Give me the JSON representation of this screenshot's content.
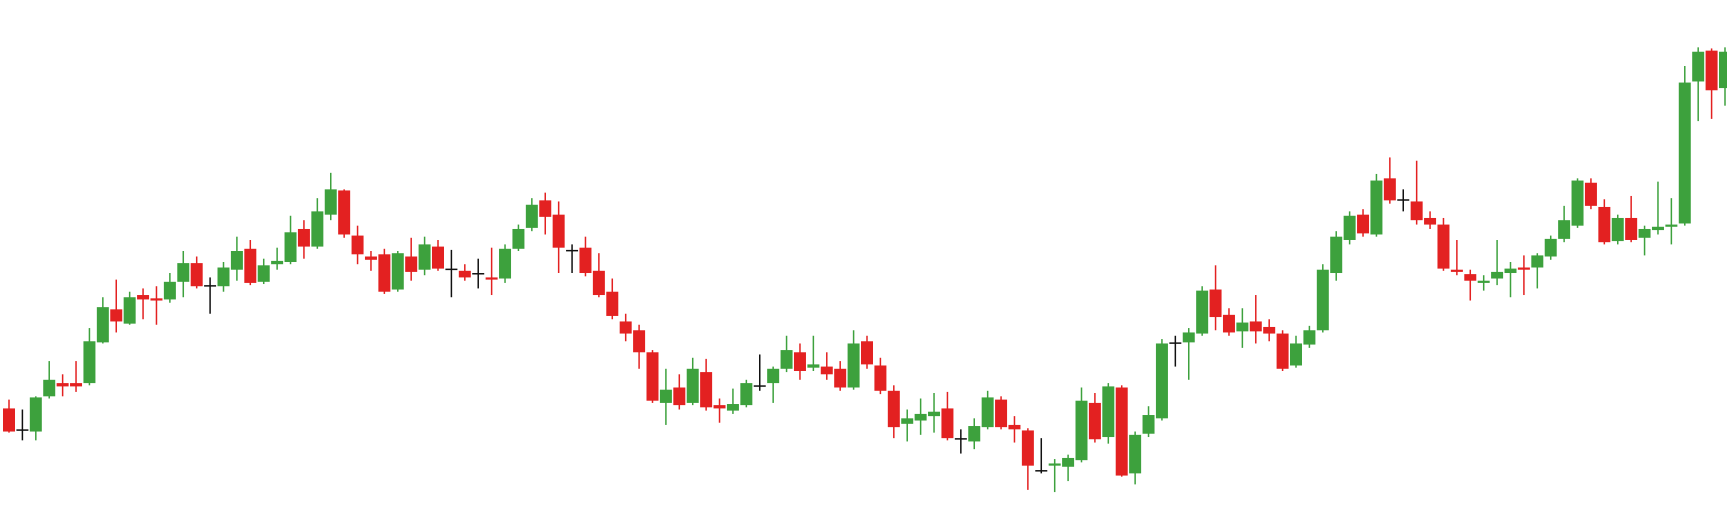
{
  "chart_data": {
    "type": "candlestick",
    "ylim": [
      0,
      466
    ],
    "colors": {
      "up": "#3da13d",
      "down": "#e32121",
      "flat": "#111111"
    },
    "open": [
      95,
      76,
      74,
      106,
      118,
      118,
      118,
      155,
      185,
      172,
      198,
      195,
      194,
      210,
      227,
      207,
      206,
      221,
      240,
      210,
      226,
      228,
      258,
      242,
      271,
      293,
      252,
      233,
      235,
      203,
      233,
      221,
      242,
      222,
      220,
      218,
      214,
      213,
      240,
      259,
      284,
      271,
      239,
      241,
      220,
      201,
      174,
      166,
      146,
      100,
      114,
      100,
      128,
      98,
      93,
      98,
      116,
      118,
      131,
      146,
      132,
      133,
      131,
      114,
      156,
      134,
      111,
      81,
      84,
      88,
      95,
      68,
      65,
      78,
      103,
      80,
      75,
      39,
      43,
      42,
      48,
      100,
      69,
      114,
      36,
      72,
      86,
      155,
      155,
      163,
      203,
      180,
      165,
      174,
      169,
      163,
      134,
      153,
      166,
      218,
      248,
      271,
      253,
      304,
      285,
      283,
      268,
      262,
      221,
      217,
      209,
      213,
      218,
      223,
      223,
      233,
      249,
      261,
      300,
      278,
      247,
      268,
      250,
      257,
      260,
      263,
      392,
      420,
      386
    ],
    "high": [
      103,
      94,
      106,
      138,
      126,
      138,
      168,
      196,
      212,
      201,
      204,
      206,
      218,
      238,
      233,
      214,
      228,
      251,
      248,
      231,
      241,
      270,
      266,
      286,
      309,
      294,
      261,
      238,
      240,
      238,
      250,
      251,
      248,
      239,
      226,
      231,
      241,
      244,
      262,
      286,
      291,
      283,
      244,
      251,
      236,
      213,
      181,
      171,
      148,
      131,
      126,
      141,
      140,
      104,
      113,
      121,
      144,
      133,
      161,
      154,
      161,
      146,
      138,
      166,
      161,
      141,
      116,
      94,
      104,
      109,
      110,
      76,
      86,
      111,
      106,
      88,
      77,
      68,
      49,
      53,
      114,
      109,
      118,
      116,
      74,
      97,
      158,
      161,
      168,
      206,
      225,
      186,
      186,
      198,
      176,
      166,
      161,
      170,
      226,
      256,
      274,
      276,
      308,
      323,
      294,
      320,
      274,
      268,
      248,
      221,
      216,
      248,
      228,
      234,
      236,
      252,
      279,
      304,
      304,
      285,
      271,
      288,
      261,
      301,
      286,
      406,
      423,
      422,
      423
    ],
    "low": [
      73,
      66,
      66,
      104,
      106,
      110,
      116,
      154,
      164,
      171,
      176,
      171,
      191,
      196,
      204,
      181,
      201,
      211,
      207,
      208,
      221,
      226,
      231,
      240,
      266,
      250,
      226,
      220,
      199,
      201,
      211,
      216,
      220,
      196,
      211,
      204,
      198,
      209,
      238,
      256,
      253,
      218,
      218,
      215,
      196,
      176,
      156,
      131,
      100,
      80,
      94,
      98,
      93,
      82,
      90,
      96,
      111,
      100,
      128,
      121,
      129,
      121,
      111,
      112,
      131,
      108,
      68,
      65,
      71,
      73,
      66,
      54,
      58,
      76,
      76,
      64,
      21,
      36,
      19,
      29,
      46,
      64,
      63,
      33,
      26,
      69,
      84,
      133,
      121,
      161,
      166,
      161,
      150,
      154,
      156,
      129,
      132,
      150,
      164,
      211,
      244,
      251,
      251,
      281,
      274,
      262,
      258,
      220,
      216,
      193,
      202,
      207,
      196,
      198,
      204,
      230,
      246,
      259,
      276,
      244,
      244,
      246,
      234,
      253,
      244,
      261,
      356,
      358,
      370
    ],
    "close": [
      74,
      76,
      105,
      121,
      115,
      115,
      156,
      187,
      174,
      196,
      194,
      193,
      210,
      227,
      206,
      207,
      223,
      238,
      209,
      225,
      229,
      255,
      242,
      274,
      294,
      253,
      235,
      230,
      201,
      236,
      219,
      244,
      222,
      222,
      214,
      218,
      212,
      240,
      258,
      280,
      269,
      241,
      239,
      218,
      198,
      179,
      163,
      146,
      102,
      112,
      98,
      131,
      96,
      95,
      99,
      118,
      116,
      131,
      148,
      129,
      135,
      126,
      114,
      154,
      135,
      111,
      78,
      86,
      90,
      92,
      68,
      68,
      79,
      105,
      78,
      76,
      43,
      39,
      45,
      50,
      102,
      67,
      115,
      34,
      71,
      89,
      154,
      155,
      164,
      202,
      178,
      164,
      173,
      165,
      163,
      131,
      154,
      166,
      221,
      251,
      270,
      254,
      302,
      284,
      285,
      266,
      262,
      222,
      219,
      211,
      211,
      219,
      222,
      221,
      234,
      249,
      266,
      302,
      279,
      246,
      268,
      248,
      258,
      260,
      262,
      391,
      419,
      384,
      419
    ]
  }
}
